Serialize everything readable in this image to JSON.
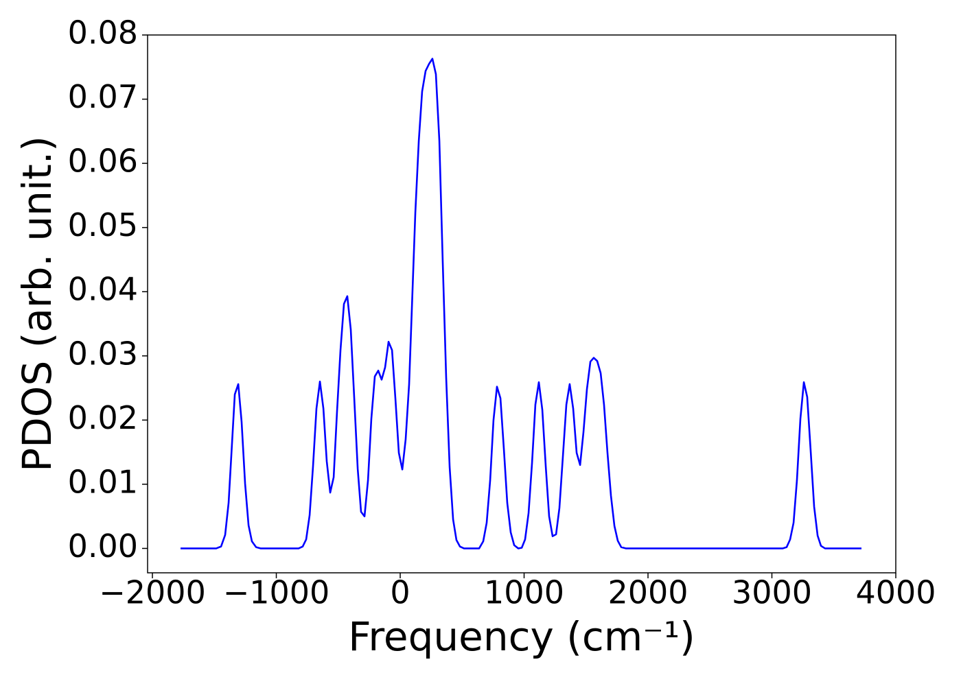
{
  "chart_data": {
    "type": "line",
    "xlabel": "Frequency (cm⁻¹)",
    "ylabel": "PDOS (arb. unit.)",
    "x": [
      -1773,
      -1485,
      -1446,
      -1413,
      -1385,
      -1335,
      -1307,
      -1280,
      -1252,
      -1224,
      -1197,
      -1163,
      -1125,
      -820,
      -787,
      -759,
      -731,
      -704,
      -676,
      -648,
      -620,
      -593,
      -565,
      -537,
      -510,
      -482,
      -454,
      -427,
      -399,
      -371,
      -343,
      -316,
      -288,
      -260,
      -233,
      -205,
      -177,
      -150,
      -122,
      -94,
      -66,
      -39,
      -11,
      17,
      44,
      72,
      94,
      122,
      150,
      177,
      205,
      233,
      260,
      288,
      316,
      343,
      371,
      399,
      427,
      454,
      482,
      515,
      637,
      670,
      698,
      726,
      753,
      781,
      809,
      837,
      864,
      892,
      920,
      953,
      981,
      1008,
      1036,
      1064,
      1091,
      1119,
      1147,
      1175,
      1202,
      1230,
      1258,
      1285,
      1313,
      1341,
      1368,
      1396,
      1424,
      1452,
      1479,
      1507,
      1535,
      1562,
      1590,
      1618,
      1645,
      1673,
      1701,
      1729,
      1756,
      1784,
      1823,
      3086,
      3119,
      3147,
      3175,
      3202,
      3230,
      3258,
      3285,
      3313,
      3341,
      3369,
      3396,
      3429,
      3723
    ],
    "series": [
      {
        "color": "#0000ff",
        "values": [
          0,
          0,
          0.0003,
          0.0021,
          0.0071,
          0.024,
          0.0256,
          0.0197,
          0.0101,
          0.0036,
          0.0011,
          0.0002,
          0,
          0,
          0.0003,
          0.0014,
          0.0052,
          0.0127,
          0.0218,
          0.026,
          0.0218,
          0.0136,
          0.0087,
          0.0111,
          0.0213,
          0.0309,
          0.0381,
          0.0393,
          0.0341,
          0.0234,
          0.0124,
          0.0057,
          0.005,
          0.0106,
          0.0202,
          0.0268,
          0.0277,
          0.0263,
          0.0282,
          0.0322,
          0.0309,
          0.0234,
          0.0149,
          0.0123,
          0.017,
          0.0256,
          0.0373,
          0.0523,
          0.0635,
          0.0712,
          0.0744,
          0.0755,
          0.0763,
          0.0739,
          0.0635,
          0.0448,
          0.0266,
          0.0127,
          0.0045,
          0.0013,
          0.0003,
          0,
          0,
          0.0011,
          0.004,
          0.0106,
          0.02,
          0.0252,
          0.0234,
          0.0154,
          0.0071,
          0.0025,
          0.0005,
          0,
          0.0001,
          0.0014,
          0.0055,
          0.0133,
          0.0224,
          0.0259,
          0.0216,
          0.0127,
          0.005,
          0.0019,
          0.0022,
          0.0063,
          0.0143,
          0.0224,
          0.0256,
          0.0218,
          0.0149,
          0.013,
          0.0181,
          0.0248,
          0.0291,
          0.0297,
          0.0292,
          0.0273,
          0.0224,
          0.0149,
          0.0082,
          0.0035,
          0.0012,
          0.0002,
          0,
          0,
          0.0002,
          0.0014,
          0.004,
          0.0106,
          0.0202,
          0.0259,
          0.0236,
          0.0152,
          0.0065,
          0.002,
          0.0004,
          0,
          0
        ]
      }
    ],
    "xlim": [
      -2039,
      4000
    ],
    "ylim": [
      -0.0038,
      0.08
    ],
    "xticks": [
      {
        "value": -2000,
        "label": "−2000"
      },
      {
        "value": -1000,
        "label": "−1000"
      },
      0,
      1000,
      2000,
      3000,
      4000
    ],
    "yticks": [
      {
        "value": 0,
        "label": "0.00"
      },
      0.01,
      0.02,
      0.03,
      0.04,
      0.05,
      0.06,
      0.07,
      0.08
    ],
    "grid": false
  }
}
